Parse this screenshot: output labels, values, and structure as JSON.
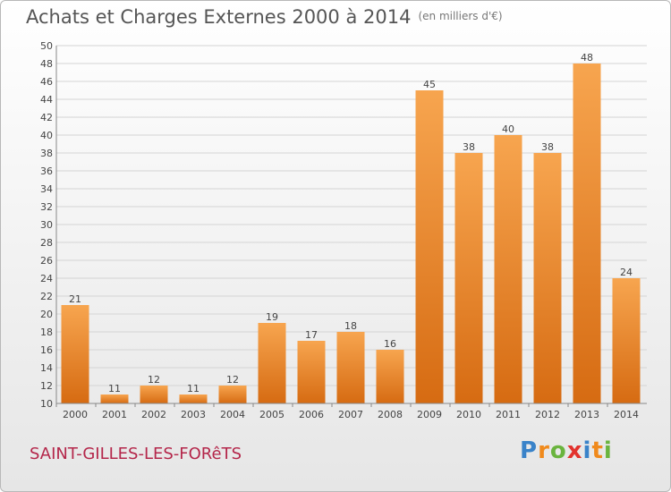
{
  "title": "Achats et Charges Externes 2000 à 2014",
  "subtitle": "(en milliers d'€)",
  "town": "SAINT-GILLES-LES-FORêTS",
  "logo": {
    "letters": [
      "P",
      "r",
      "o",
      "x",
      "i",
      "t",
      "i"
    ],
    "colors": [
      "#3a83c9",
      "#f08a1c",
      "#6ab43e",
      "#e2322d",
      "#3a83c9",
      "#f08a1c",
      "#6ab43e"
    ]
  },
  "colors": {
    "bar_top": "#f7a54f",
    "bar_bottom": "#d66b12",
    "grid": "#d4d4d4",
    "axis": "#888888",
    "text": "#444444"
  },
  "chart_data": {
    "type": "bar",
    "title": "Achats et Charges Externes 2000 à 2014",
    "subtitle": "(en milliers d'€)",
    "categories": [
      "2000",
      "2001",
      "2002",
      "2003",
      "2004",
      "2005",
      "2006",
      "2007",
      "2008",
      "2009",
      "2010",
      "2011",
      "2012",
      "2013",
      "2014"
    ],
    "values": [
      21,
      11,
      12,
      11,
      12,
      19,
      17,
      18,
      16,
      45,
      38,
      40,
      38,
      48,
      24
    ],
    "ylim": [
      10,
      50
    ],
    "yticks": [
      10,
      12,
      14,
      16,
      18,
      20,
      22,
      24,
      26,
      28,
      30,
      32,
      34,
      36,
      38,
      40,
      42,
      44,
      46,
      48,
      50
    ],
    "xlabel": "",
    "ylabel": "",
    "grid": true,
    "legend": "none"
  }
}
